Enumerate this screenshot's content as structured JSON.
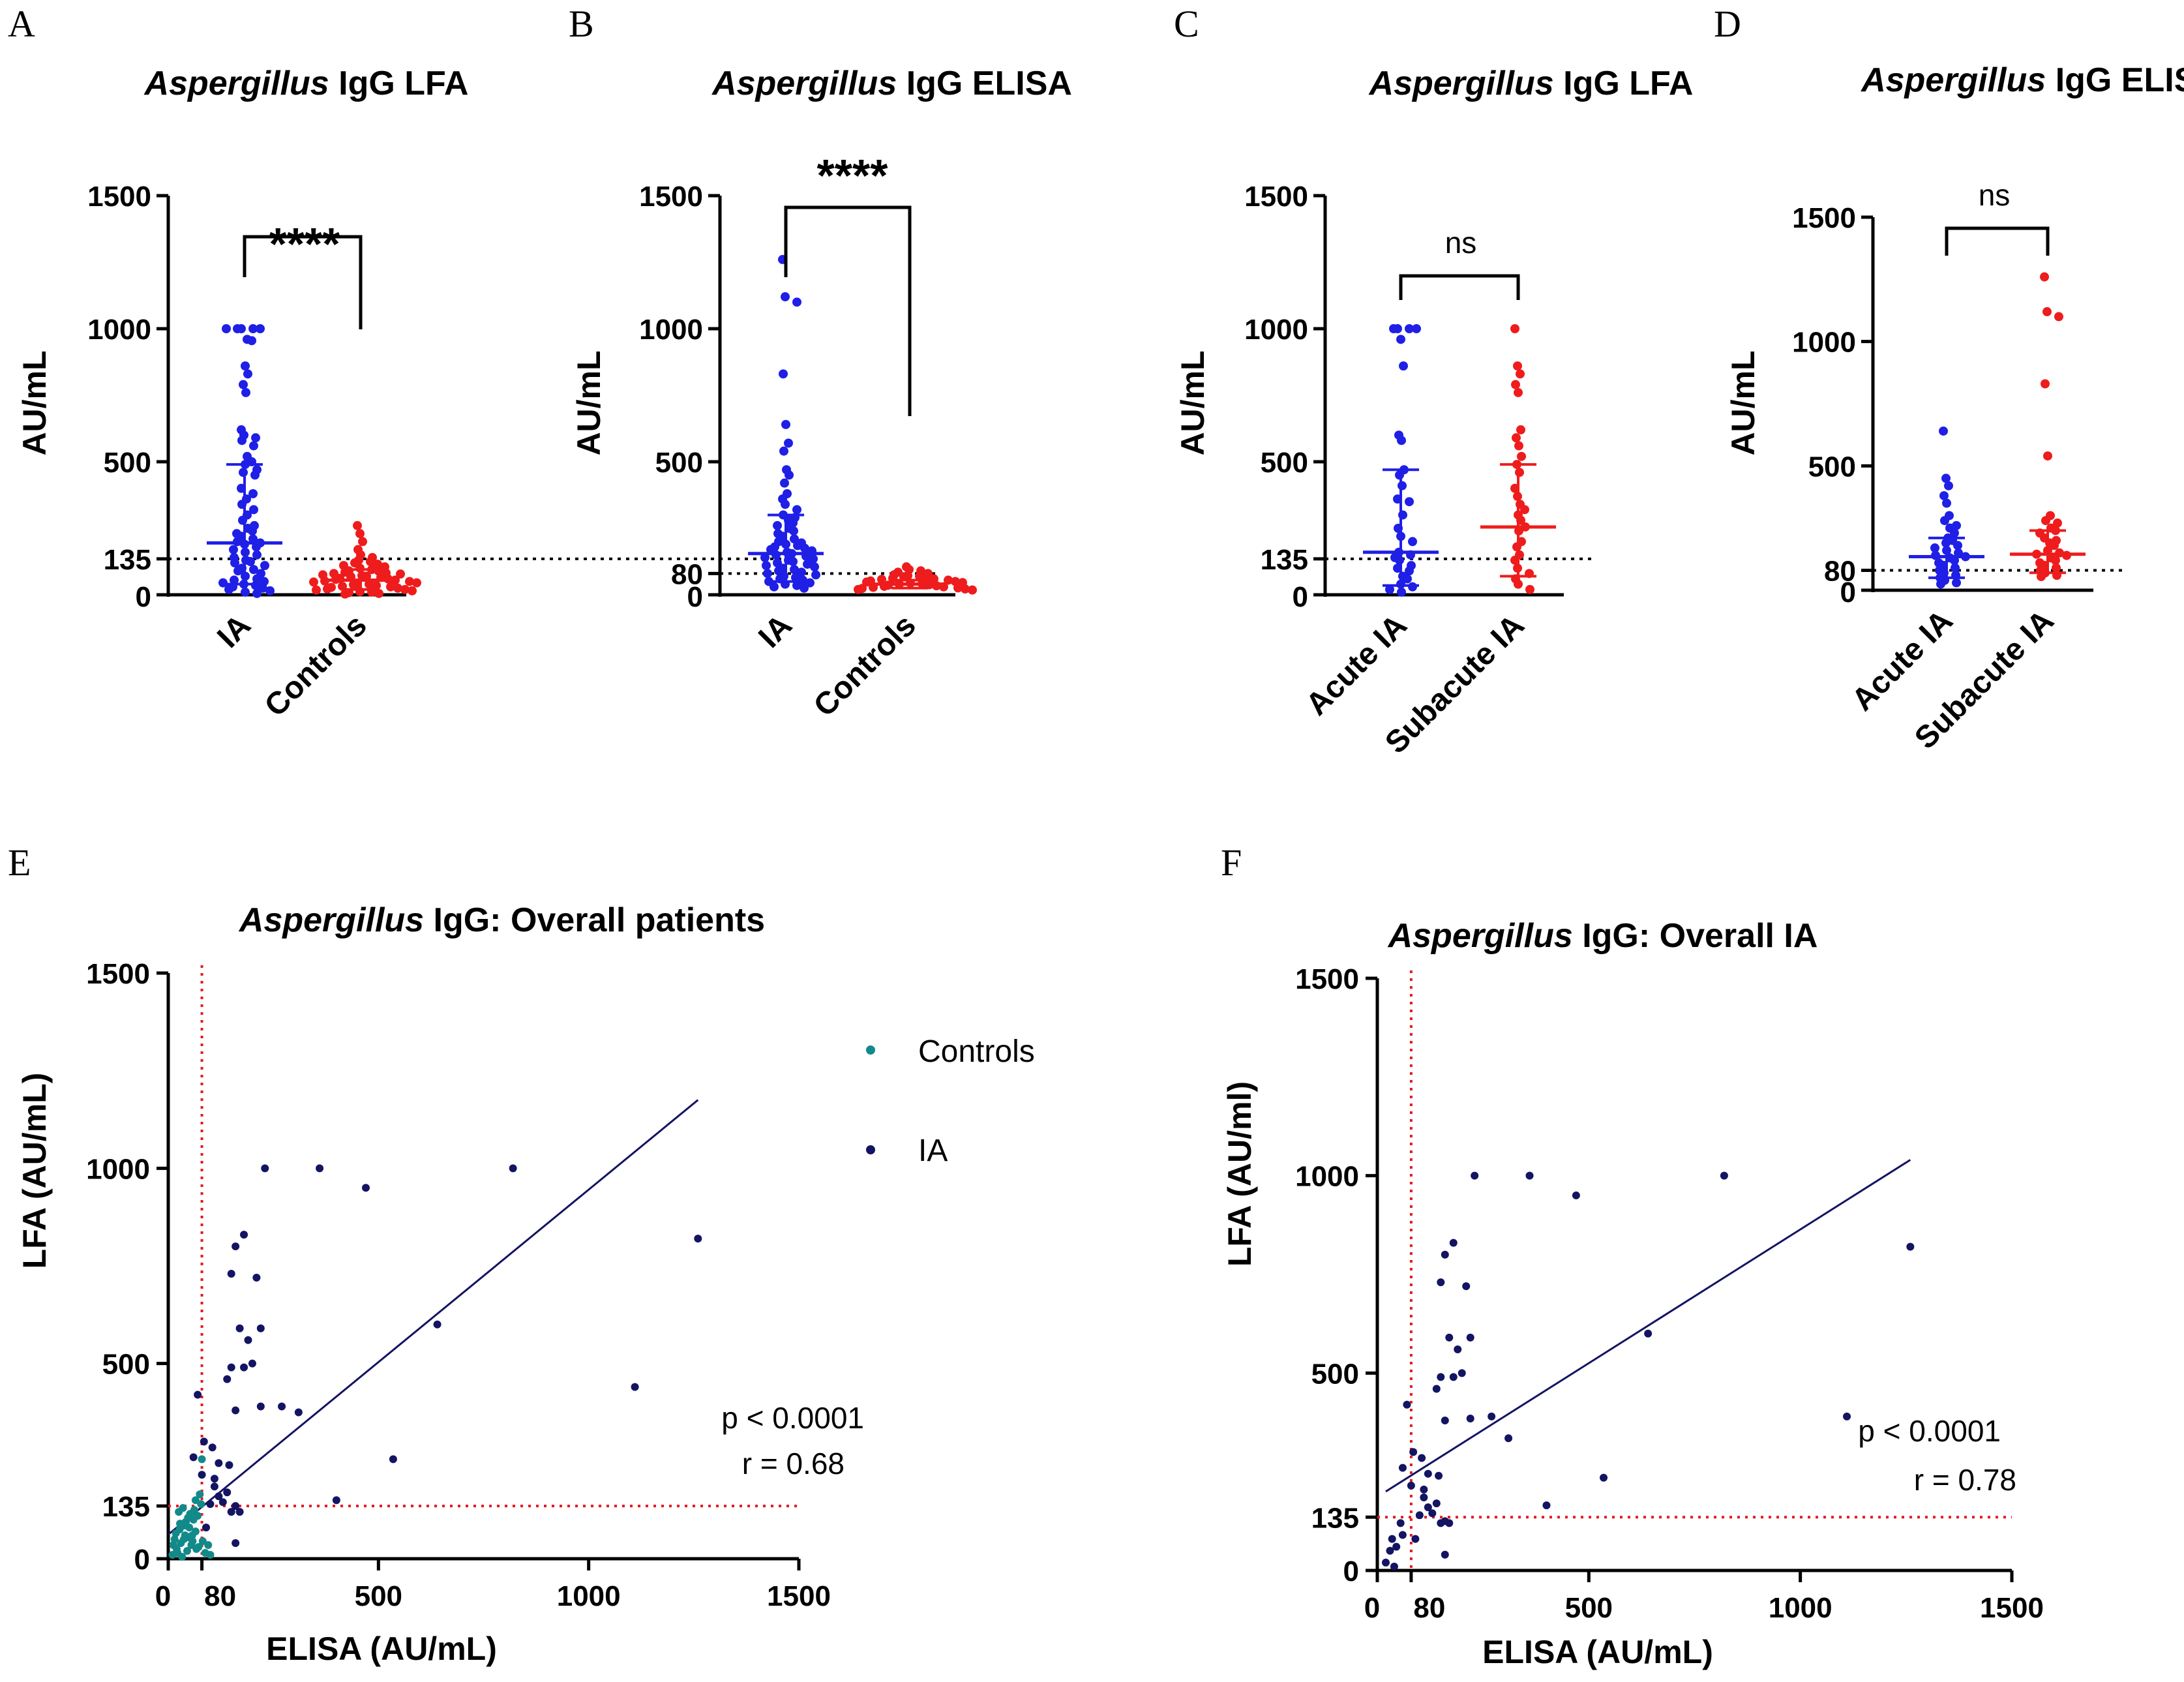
{
  "figure": {
    "panel_labels": [
      "A",
      "B",
      "C",
      "D",
      "E",
      "F"
    ]
  },
  "chart_data": [
    {
      "id": "A",
      "type": "scatter",
      "title_italic": "Aspergillus",
      "title_rest": " IgG LFA",
      "ylabel": "AU/mL",
      "yticks": [
        0,
        135,
        500,
        1000,
        1500
      ],
      "ylim": [
        0,
        1500
      ],
      "cutoff": 135,
      "categories": [
        "IA",
        "Controls"
      ],
      "significance": "****",
      "colors": [
        "#1f1fe6",
        "#ee1c1c"
      ],
      "groups": [
        {
          "name": "IA",
          "median": 195,
          "q1": 40,
          "q3": 490,
          "values": [
            1000,
            1000,
            1000,
            1000,
            1000,
            960,
            955,
            860,
            830,
            790,
            760,
            620,
            600,
            590,
            580,
            560,
            520,
            500,
            490,
            470,
            460,
            450,
            400,
            380,
            360,
            340,
            320,
            300,
            280,
            260,
            250,
            240,
            230,
            220,
            210,
            200,
            195,
            190,
            180,
            170,
            160,
            150,
            140,
            130,
            125,
            120,
            110,
            100,
            95,
            90,
            80,
            70,
            60,
            55,
            50,
            45,
            40,
            35,
            30,
            25,
            20,
            15,
            10,
            5
          ]
        },
        {
          "name": "Controls",
          "median": 55,
          "q1": 20,
          "q3": 95,
          "values": [
            260,
            230,
            200,
            170,
            150,
            140,
            130,
            125,
            120,
            115,
            110,
            105,
            100,
            95,
            90,
            88,
            85,
            82,
            80,
            78,
            75,
            72,
            70,
            68,
            65,
            62,
            60,
            58,
            55,
            52,
            50,
            48,
            45,
            42,
            40,
            38,
            35,
            32,
            30,
            28,
            25,
            22,
            20,
            18,
            15,
            12,
            10,
            8,
            5,
            3
          ]
        }
      ]
    },
    {
      "id": "B",
      "type": "scatter",
      "title_italic": "Aspergillus",
      "title_rest": " IgG ELISA",
      "ylabel": "AU/mL",
      "yticks": [
        0,
        80,
        500,
        1000,
        1500
      ],
      "ylim": [
        0,
        1500
      ],
      "cutoff": 80,
      "categories": [
        "IA",
        "Controls"
      ],
      "significance": "****",
      "colors": [
        "#1f1fe6",
        "#ee1c1c"
      ],
      "groups": [
        {
          "name": "IA",
          "median": 155,
          "q1": 50,
          "q3": 300,
          "values": [
            1260,
            1120,
            1100,
            830,
            640,
            570,
            540,
            470,
            450,
            420,
            380,
            360,
            340,
            320,
            300,
            290,
            280,
            270,
            260,
            250,
            240,
            230,
            220,
            210,
            200,
            195,
            190,
            185,
            180,
            175,
            170,
            165,
            160,
            155,
            150,
            145,
            140,
            135,
            130,
            125,
            120,
            115,
            110,
            105,
            100,
            95,
            90,
            85,
            80,
            75,
            70,
            65,
            60,
            55,
            50,
            45,
            40,
            35,
            30,
            25
          ]
        },
        {
          "name": "Controls",
          "median": 40,
          "q1": 25,
          "q3": 55,
          "values": [
            105,
            95,
            90,
            85,
            80,
            75,
            72,
            70,
            68,
            65,
            62,
            60,
            58,
            55,
            52,
            50,
            48,
            46,
            44,
            42,
            40,
            38,
            36,
            34,
            32,
            30,
            28,
            26,
            24,
            22,
            20,
            18
          ]
        }
      ]
    },
    {
      "id": "C",
      "type": "scatter",
      "title_italic": "Aspergillus",
      "title_rest": " IgG LFA",
      "ylabel": "AU/mL",
      "yticks": [
        0,
        135,
        500,
        1000,
        1500
      ],
      "ylim": [
        0,
        1500
      ],
      "cutoff": 135,
      "categories": [
        "Acute IA",
        "Subacute IA"
      ],
      "significance": "ns",
      "colors": [
        "#1f1fe6",
        "#ee1c1c"
      ],
      "groups": [
        {
          "name": "Acute IA",
          "median": 160,
          "q1": 35,
          "q3": 470,
          "values": [
            1000,
            1000,
            1000,
            1000,
            960,
            860,
            600,
            580,
            470,
            450,
            410,
            360,
            350,
            300,
            250,
            220,
            200,
            160,
            150,
            140,
            130,
            110,
            100,
            90,
            70,
            60,
            40,
            30,
            20,
            10
          ]
        },
        {
          "name": "Subacute IA",
          "median": 255,
          "q1": 70,
          "q3": 490,
          "values": [
            1000,
            860,
            830,
            790,
            760,
            620,
            590,
            560,
            520,
            490,
            460,
            400,
            370,
            340,
            320,
            300,
            280,
            255,
            240,
            200,
            180,
            150,
            130,
            100,
            80,
            60,
            40,
            20
          ]
        }
      ]
    },
    {
      "id": "D",
      "type": "scatter",
      "title_italic": "Aspergillus",
      "title_rest": " IgG ELISA",
      "ylabel": "AU/mL",
      "yticks": [
        0,
        80,
        500,
        1000,
        1500
      ],
      "ylim": [
        0,
        1500
      ],
      "cutoff": 80,
      "categories": [
        "Acute IA",
        "Subacute IA"
      ],
      "significance": "ns",
      "colors": [
        "#1f1fe6",
        "#ee1c1c"
      ],
      "groups": [
        {
          "name": "Acute IA",
          "median": 135,
          "q1": 50,
          "q3": 210,
          "values": [
            640,
            450,
            420,
            380,
            350,
            300,
            280,
            260,
            250,
            230,
            210,
            200,
            190,
            180,
            170,
            160,
            150,
            140,
            135,
            130,
            120,
            110,
            100,
            90,
            80,
            70,
            60,
            50,
            40,
            30,
            25
          ]
        },
        {
          "name": "Subacute IA",
          "median": 145,
          "q1": 70,
          "q3": 240,
          "values": [
            1260,
            1120,
            1100,
            830,
            540,
            300,
            280,
            270,
            250,
            240,
            230,
            210,
            200,
            190,
            180,
            160,
            150,
            145,
            140,
            130,
            120,
            110,
            100,
            90,
            80,
            70,
            60,
            55
          ]
        }
      ]
    },
    {
      "id": "E",
      "type": "scatter",
      "title_italic": "Aspergillus",
      "title_rest": " IgG: Overall  patients",
      "xlabel": "ELISA (AU/mL)",
      "ylabel": "LFA (AU/mL)",
      "xticks": [
        0,
        80,
        500,
        1000,
        1500
      ],
      "yticks": [
        0,
        135,
        500,
        1000,
        1500
      ],
      "xlim": [
        0,
        1500
      ],
      "ylim": [
        0,
        1500
      ],
      "cutoff_x": 80,
      "cutoff_y": 135,
      "stats": [
        "p < 0.0001",
        "r = 0.68"
      ],
      "legend": [
        "Controls",
        "IA"
      ],
      "colors": {
        "controls": "#138a8a",
        "ia": "#131462",
        "cutoff": "#e31a1c"
      },
      "regression": {
        "x0": 0,
        "y0": 62,
        "x1": 1260,
        "y1": 1175
      },
      "series": [
        {
          "name": "IA",
          "points": [
            [
              230,
              1000
            ],
            [
              360,
              1000
            ],
            [
              820,
              1000
            ],
            [
              470,
              950
            ],
            [
              180,
              830
            ],
            [
              160,
              800
            ],
            [
              210,
              720
            ],
            [
              1260,
              820
            ],
            [
              150,
              730
            ],
            [
              640,
              600
            ],
            [
              170,
              590
            ],
            [
              220,
              590
            ],
            [
              190,
              560
            ],
            [
              200,
              500
            ],
            [
              150,
              490
            ],
            [
              180,
              490
            ],
            [
              270,
              390
            ],
            [
              310,
              375
            ],
            [
              1110,
              440
            ],
            [
              140,
              460
            ],
            [
              160,
              380
            ],
            [
              220,
              390
            ],
            [
              535,
              255
            ],
            [
              400,
              150
            ],
            [
              70,
              420
            ],
            [
              105,
              285
            ],
            [
              120,
              245
            ],
            [
              145,
              240
            ],
            [
              110,
              205
            ],
            [
              80,
              215
            ],
            [
              110,
              185
            ],
            [
              120,
              160
            ],
            [
              160,
              135
            ],
            [
              150,
              120
            ],
            [
              170,
              120
            ],
            [
              100,
              140
            ],
            [
              160,
              40
            ],
            [
              90,
              80
            ],
            [
              60,
              260
            ],
            [
              85,
              300
            ],
            [
              140,
              170
            ],
            [
              130,
              145
            ]
          ]
        },
        {
          "name": "Controls",
          "points": [
            [
              10,
              10
            ],
            [
              20,
              25
            ],
            [
              30,
              40
            ],
            [
              40,
              60
            ],
            [
              50,
              80
            ],
            [
              60,
              100
            ],
            [
              25,
              120
            ],
            [
              35,
              130
            ],
            [
              15,
              50
            ],
            [
              45,
              20
            ],
            [
              55,
              35
            ],
            [
              65,
              70
            ],
            [
              70,
              110
            ],
            [
              28,
              90
            ],
            [
              38,
              85
            ],
            [
              48,
              55
            ],
            [
              58,
              45
            ],
            [
              18,
              65
            ],
            [
              22,
              15
            ],
            [
              33,
              5
            ],
            [
              42,
              95
            ],
            [
              52,
              115
            ],
            [
              62,
              125
            ],
            [
              72,
              30
            ],
            [
              78,
              140
            ],
            [
              80,
              255
            ],
            [
              75,
              165
            ],
            [
              12,
              35
            ],
            [
              27,
              75
            ],
            [
              37,
              50
            ],
            [
              47,
              105
            ],
            [
              57,
              60
            ],
            [
              67,
              25
            ],
            [
              82,
              45
            ],
            [
              88,
              15
            ],
            [
              95,
              35
            ],
            [
              100,
              10
            ],
            [
              65,
              150
            ]
          ]
        }
      ]
    },
    {
      "id": "F",
      "type": "scatter",
      "title_italic": "Aspergillus",
      "title_rest": " IgG: Overall IA",
      "xlabel": "ELISA (AU/mL)",
      "ylabel": "LFA (AU/ml)",
      "xticks": [
        0,
        80,
        500,
        1000,
        1500
      ],
      "yticks": [
        0,
        135,
        500,
        1000,
        1500
      ],
      "xlim": [
        0,
        1500
      ],
      "ylim": [
        0,
        1500
      ],
      "cutoff_x": 80,
      "cutoff_y": 135,
      "stats": [
        "p < 0.0001",
        "r = 0.78"
      ],
      "colors": {
        "ia": "#131462",
        "cutoff": "#e31a1c"
      },
      "regression": {
        "x0": 20,
        "y0": 200,
        "x1": 1260,
        "y1": 1040
      },
      "series": [
        {
          "name": "IA",
          "points": [
            [
              230,
              1000
            ],
            [
              360,
              1000
            ],
            [
              820,
              1000
            ],
            [
              470,
              950
            ],
            [
              180,
              830
            ],
            [
              160,
              800
            ],
            [
              210,
              720
            ],
            [
              1260,
              820
            ],
            [
              150,
              730
            ],
            [
              640,
              600
            ],
            [
              170,
              590
            ],
            [
              220,
              590
            ],
            [
              190,
              560
            ],
            [
              200,
              500
            ],
            [
              150,
              490
            ],
            [
              180,
              490
            ],
            [
              270,
              390
            ],
            [
              310,
              335
            ],
            [
              1110,
              390
            ],
            [
              140,
              460
            ],
            [
              160,
              380
            ],
            [
              220,
              385
            ],
            [
              535,
              235
            ],
            [
              400,
              165
            ],
            [
              70,
              420
            ],
            [
              105,
              285
            ],
            [
              120,
              245
            ],
            [
              145,
              240
            ],
            [
              110,
              205
            ],
            [
              80,
              215
            ],
            [
              110,
              185
            ],
            [
              120,
              160
            ],
            [
              160,
              125
            ],
            [
              150,
              120
            ],
            [
              170,
              120
            ],
            [
              100,
              140
            ],
            [
              160,
              40
            ],
            [
              90,
              80
            ],
            [
              60,
              260
            ],
            [
              85,
              300
            ],
            [
              140,
              170
            ],
            [
              130,
              145
            ],
            [
              30,
              50
            ],
            [
              45,
              60
            ],
            [
              20,
              20
            ],
            [
              40,
              10
            ],
            [
              60,
              90
            ],
            [
              55,
              120
            ],
            [
              35,
              80
            ]
          ]
        }
      ]
    }
  ]
}
